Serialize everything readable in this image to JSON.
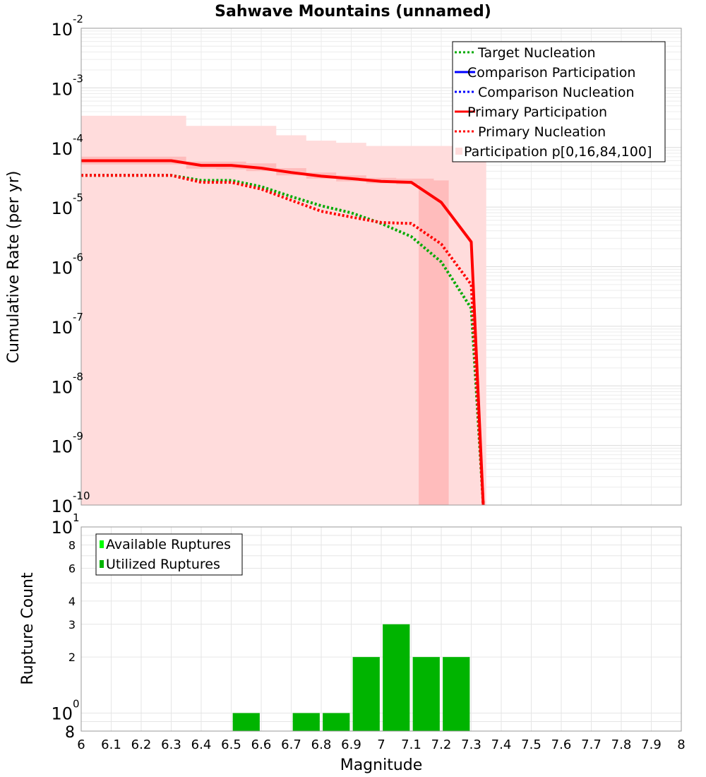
{
  "chart_data": [
    {
      "type": "line",
      "title": "Sahwave Mountains (unnamed)",
      "xlabel": "",
      "ylabel": "Cumulative Rate (per yr)",
      "xlim": [
        6,
        8
      ],
      "ylim": [
        1e-10,
        0.01
      ],
      "yscale": "log",
      "grid": true,
      "legend_position": "top-right",
      "y_tick_labels": [
        {
          "exp": -10,
          "base": "10",
          "sup": "-10"
        },
        {
          "exp": -9,
          "base": "10",
          "sup": "-9"
        },
        {
          "exp": -8,
          "base": "10",
          "sup": "-8"
        },
        {
          "exp": -7,
          "base": "10",
          "sup": "-7"
        },
        {
          "exp": -6,
          "base": "10",
          "sup": "-6"
        },
        {
          "exp": -5,
          "base": "10",
          "sup": "-5"
        },
        {
          "exp": -4,
          "base": "10",
          "sup": "-4"
        },
        {
          "exp": -3,
          "base": "10",
          "sup": "-3"
        },
        {
          "exp": -2,
          "base": "10",
          "sup": "-2"
        }
      ],
      "bands": [
        {
          "name": "Participation p[0,16,84,100]",
          "color": "#ffdcdc",
          "x": [
            6.0,
            6.1,
            6.2,
            6.3,
            6.4,
            6.5,
            6.6,
            6.7,
            6.8,
            6.9,
            7.0,
            7.1,
            7.2,
            7.3
          ],
          "lower": [
            1e-10,
            1e-10,
            1e-10,
            1e-10,
            1e-10,
            1e-10,
            1e-10,
            1e-10,
            1e-10,
            1e-10,
            1e-10,
            1e-10,
            1e-10,
            1e-10
          ],
          "upper": [
            0.00034,
            0.00034,
            0.00034,
            0.00034,
            0.00023,
            0.00023,
            0.00023,
            0.00016,
            0.00013,
            0.00012,
            0.000106,
            0.000106,
            0.000106,
            0.000106
          ]
        },
        {
          "name": "Participation 16-84",
          "color": "#ffbcbc",
          "x": [
            6.0,
            6.1,
            6.2,
            6.3,
            6.4,
            6.5,
            6.6,
            6.7,
            6.8,
            6.9,
            7.0,
            7.1,
            7.15,
            7.2,
            7.25
          ],
          "lower": [
            5.2e-05,
            5.2e-05,
            5.2e-05,
            5.2e-05,
            4.4e-05,
            4.3e-05,
            4e-05,
            3.4e-05,
            3e-05,
            2.7e-05,
            2.5e-05,
            2.4e-05,
            1e-10,
            1e-10,
            1e-10
          ],
          "upper": [
            7e-05,
            7e-05,
            7e-05,
            7e-05,
            5.8e-05,
            5.8e-05,
            5.4e-05,
            4.5e-05,
            3.8e-05,
            3.4e-05,
            3.1e-05,
            3e-05,
            3e-05,
            2.8e-05,
            1e-10
          ]
        }
      ],
      "series": [
        {
          "name": "Target Nucleation",
          "color": "#00aa00",
          "style": "dotted",
          "x": [
            6.0,
            6.1,
            6.2,
            6.3,
            6.4,
            6.5,
            6.6,
            6.7,
            6.8,
            6.9,
            7.0,
            7.1,
            7.2,
            7.3,
            7.34
          ],
          "y": [
            3.4e-05,
            3.4e-05,
            3.4e-05,
            3.4e-05,
            2.8e-05,
            2.8e-05,
            2.2e-05,
            1.5e-05,
            1.05e-05,
            8e-06,
            5.3e-06,
            3.2e-06,
            1.2e-06,
            2e-07,
            1e-10
          ]
        },
        {
          "name": "Comparison Participation",
          "color": "#0000ff",
          "style": "solid",
          "x": [],
          "y": []
        },
        {
          "name": "Comparison Nucleation",
          "color": "#0000ff",
          "style": "dotted",
          "x": [],
          "y": []
        },
        {
          "name": "Primary Participation",
          "color": "#ff0000",
          "style": "solid",
          "x": [
            6.0,
            6.1,
            6.2,
            6.3,
            6.4,
            6.5,
            6.6,
            6.7,
            6.8,
            6.9,
            7.0,
            7.1,
            7.2,
            7.3,
            7.34
          ],
          "y": [
            6e-05,
            6e-05,
            6e-05,
            6e-05,
            5e-05,
            5e-05,
            4.5e-05,
            3.8e-05,
            3.3e-05,
            3e-05,
            2.7e-05,
            2.6e-05,
            1.2e-05,
            2.6e-06,
            1e-10
          ]
        },
        {
          "name": "Primary Nucleation",
          "color": "#ff0000",
          "style": "dotted",
          "x": [
            6.0,
            6.1,
            6.2,
            6.3,
            6.4,
            6.5,
            6.6,
            6.7,
            6.8,
            6.9,
            7.0,
            7.1,
            7.2,
            7.3,
            7.34
          ],
          "y": [
            3.4e-05,
            3.4e-05,
            3.4e-05,
            3.4e-05,
            2.6e-05,
            2.6e-05,
            2e-05,
            1.3e-05,
            8.5e-06,
            6.8e-06,
            5.5e-06,
            5.3e-06,
            2.4e-06,
            5e-07,
            1e-10
          ]
        }
      ],
      "legend": [
        {
          "label": "Target Nucleation",
          "color": "#00aa00",
          "style": "dotted"
        },
        {
          "label": "Comparison Participation",
          "color": "#0000ff",
          "style": "solid"
        },
        {
          "label": "Comparison Nucleation",
          "color": "#0000ff",
          "style": "dotted"
        },
        {
          "label": "Primary Participation",
          "color": "#ff0000",
          "style": "solid"
        },
        {
          "label": "Primary Nucleation",
          "color": "#ff0000",
          "style": "dotted"
        },
        {
          "label": "Participation p[0,16,84,100]",
          "color": "#ffdcdc",
          "style": "patch"
        }
      ]
    },
    {
      "type": "bar",
      "title": "",
      "xlabel": "Magnitude",
      "ylabel": "Rupture Count",
      "xlim": [
        6,
        8
      ],
      "ylim": [
        0.8,
        10
      ],
      "yscale": "log",
      "grid": true,
      "legend_position": "top-left",
      "x_tick_labels": [
        "6",
        "6.1",
        "6.2",
        "6.3",
        "6.4",
        "6.5",
        "6.6",
        "6.7",
        "6.8",
        "6.9",
        "7",
        "7.1",
        "7.2",
        "7.3",
        "7.4",
        "7.5",
        "7.6",
        "7.7",
        "7.8",
        "7.9",
        "8"
      ],
      "y_major_labels": [
        {
          "value": 1,
          "base": "10",
          "sup": "0"
        },
        {
          "value": 10,
          "base": "10",
          "sup": "1"
        }
      ],
      "y_minor_labels": [
        {
          "value": 0.8,
          "label": "8"
        },
        {
          "value": 2,
          "label": "2"
        },
        {
          "value": 3,
          "label": "3"
        },
        {
          "value": 4,
          "label": "4"
        },
        {
          "value": 6,
          "label": "6"
        },
        {
          "value": 8,
          "label": "8"
        }
      ],
      "bar_width": 0.09,
      "series": [
        {
          "name": "Available Ruptures",
          "color": "#00ff00",
          "x": [],
          "values": []
        },
        {
          "name": "Utilized Ruptures",
          "color": "#00b400",
          "x": [
            6.55,
            6.75,
            6.85,
            6.95,
            7.05,
            7.15,
            7.25
          ],
          "values": [
            1,
            1,
            1,
            2,
            3,
            2,
            2
          ]
        }
      ],
      "legend": [
        {
          "label": "Available Ruptures",
          "color": "#00ff00"
        },
        {
          "label": "Utilized Ruptures",
          "color": "#00b400"
        }
      ]
    }
  ]
}
